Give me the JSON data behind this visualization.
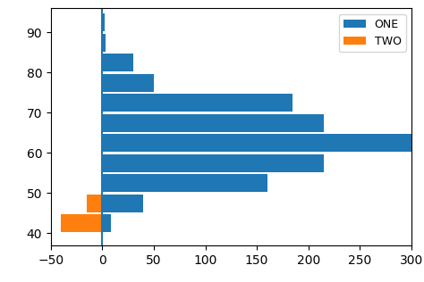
{
  "xlim": [
    -50,
    300
  ],
  "ylim": [
    37,
    96
  ],
  "yticks": [
    40,
    50,
    60,
    70,
    80,
    90
  ],
  "xtick_vals": [
    -50.0,
    0.0,
    50.0,
    100.0,
    150.0,
    200.0,
    250.0,
    300.0
  ],
  "xtick_labels": [
    "50.0",
    "0.0",
    "50.0",
    "100.0",
    "150.0",
    "200.0",
    "250.0",
    "300.0"
  ],
  "bins": [
    40,
    45,
    50,
    55,
    60,
    65,
    70,
    75,
    80,
    85,
    90,
    95
  ],
  "one_counts": [
    8,
    40,
    160,
    215,
    300,
    215,
    185,
    50,
    30,
    3,
    2
  ],
  "two_counts": [
    -40,
    -15,
    0,
    0,
    0,
    0,
    0,
    0,
    0,
    0,
    0
  ],
  "bar_height": 4.5,
  "color_one": "#1f77b4",
  "color_two": "#ff7f0e",
  "legend_one": "ONE",
  "legend_two": "TWO",
  "vline_color": "#1f77b4"
}
